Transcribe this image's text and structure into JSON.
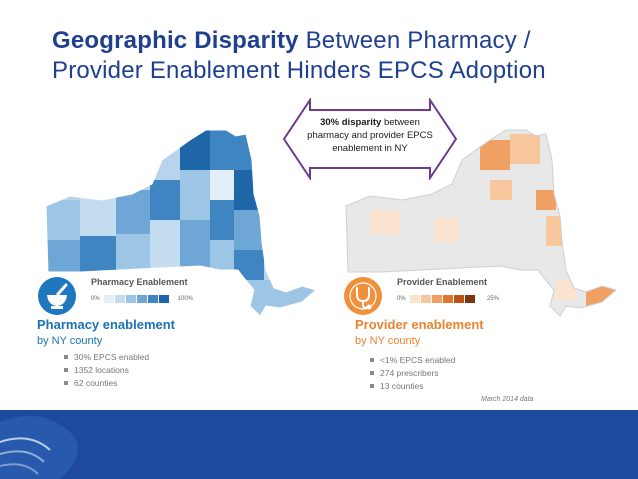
{
  "header": {
    "title_bold": "Geographic Disparity",
    "title_rest": " Between Pharmacy / Provider Enablement Hinders EPCS Adoption"
  },
  "callout": {
    "bold": "30% disparity",
    "text": " between pharmacy and provider EPCS enablement in NY"
  },
  "left_pane": {
    "legend_title": "Pharmacy Enablement",
    "legend_min": "0%",
    "legend_max": "100%",
    "heading": "Pharmacy enablement",
    "subheading": "by NY county",
    "bullets": [
      "30% EPCS enabled",
      "1352 locations",
      "62 counties"
    ],
    "icon": "mortar-pestle-icon",
    "colors": [
      "#e3eef8",
      "#c4dcf0",
      "#9cc5e6",
      "#6ea7d6",
      "#3f85c1",
      "#1f66a8"
    ]
  },
  "right_pane": {
    "legend_title": "Provider Enablement",
    "legend_min": "0%",
    "legend_max": "25%",
    "heading": "Provider enablement",
    "subheading": "by NY county",
    "bullets": [
      "<1% EPCS enabled",
      "274 prescribers",
      "13 counties"
    ],
    "icon": "stethoscope-icon",
    "colors": [
      "#fbe4cf",
      "#f7c69d",
      "#f0a063",
      "#e0762c",
      "#b8531a",
      "#7d3410"
    ]
  },
  "note": "March 2014 data",
  "theme": {
    "title_color": "#1f3f8f",
    "footer_color": "#1d4a9c"
  }
}
